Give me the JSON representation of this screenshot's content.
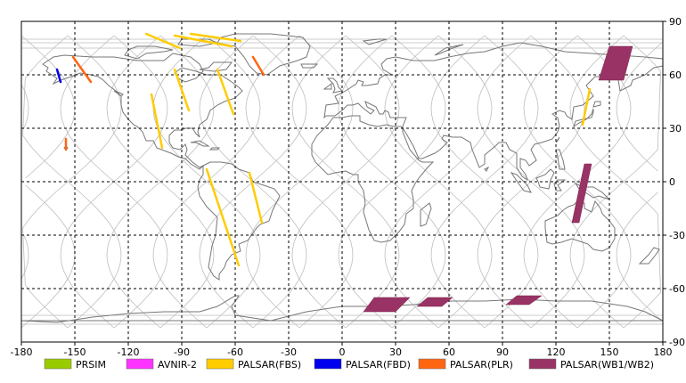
{
  "map": {
    "lon_range": [
      -180,
      180
    ],
    "lat_range": [
      -90,
      90
    ],
    "grid": true,
    "background": "#ffffff",
    "coastline_color": "#777777",
    "orbit_color": "#bdbdbd",
    "x_ticks": [
      "-180",
      "-150",
      "-120",
      "-90",
      "-60",
      "-30",
      "0",
      "30",
      "60",
      "90",
      "120",
      "150",
      "180"
    ],
    "y_ticks": [
      "90",
      "60",
      "30",
      "0",
      "-30",
      "-60",
      "-90"
    ]
  },
  "legend": [
    {
      "label": "PRSIM",
      "color": "#99cc00"
    },
    {
      "label": "AVNIR-2",
      "color": "#ff33ff"
    },
    {
      "label": "PALSAR(FBS)",
      "color": "#ffcc00"
    },
    {
      "label": "PALSAR(FBD)",
      "color": "#0000ee"
    },
    {
      "label": "PALSAR(PLR)",
      "color": "#ff6611"
    },
    {
      "label": "PALSAR(WB1/WB2)",
      "color": "#993366"
    }
  ],
  "observations": {
    "fbs_strips": [
      {
        "lon": [
          -107,
          -101
        ],
        "lat": [
          49,
          19
        ]
      },
      {
        "lon": [
          -94,
          -86
        ],
        "lat": [
          63,
          40
        ]
      },
      {
        "lon": [
          -70,
          -61
        ],
        "lat": [
          63,
          38
        ]
      },
      {
        "lon": [
          -76,
          -58
        ],
        "lat": [
          7,
          -47
        ]
      },
      {
        "lon": [
          -52,
          -45
        ],
        "lat": [
          5,
          -23
        ]
      },
      {
        "lon": [
          139,
          135
        ],
        "lat": [
          52,
          32
        ]
      },
      {
        "lon": [
          -94,
          -62
        ],
        "lat": [
          82,
          76
        ]
      },
      {
        "lon": [
          -85,
          -57
        ],
        "lat": [
          83,
          79
        ]
      },
      {
        "lon": [
          -110,
          -91
        ],
        "lat": [
          83,
          75
        ]
      }
    ],
    "fbd_strips": [
      {
        "lon": [
          -160,
          -158
        ],
        "lat": [
          63,
          56
        ]
      }
    ],
    "plr_strips": [
      {
        "lon": [
          -151,
          -141
        ],
        "lat": [
          70,
          56
        ]
      },
      {
        "lon": [
          -50,
          -44
        ],
        "lat": [
          70,
          60
        ]
      },
      {
        "lon": [
          -155,
          -155
        ],
        "lat": [
          24,
          18
        ]
      }
    ],
    "wb_swaths": [
      {
        "lon": [
          150,
          163,
          158,
          144
        ],
        "lat": [
          76,
          76,
          57,
          57
        ]
      },
      {
        "lon": [
          136,
          140,
          133,
          129
        ],
        "lat": [
          10,
          10,
          -23,
          -23
        ]
      },
      {
        "lon": [
          18,
          38,
          30,
          12
        ],
        "lat": [
          -65,
          -65,
          -73,
          -73
        ]
      },
      {
        "lon": [
          48,
          62,
          56,
          42
        ],
        "lat": [
          -65,
          -65,
          -70,
          -70
        ]
      },
      {
        "lon": [
          98,
          112,
          105,
          92
        ],
        "lat": [
          -64,
          -64,
          -69,
          -69
        ]
      }
    ]
  }
}
